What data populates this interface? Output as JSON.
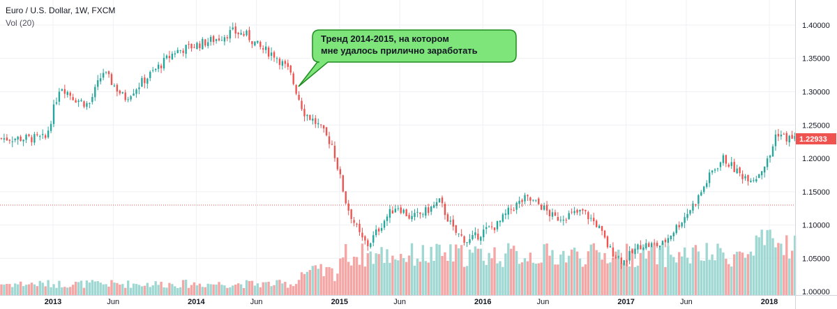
{
  "legend": {
    "title": "Euro / U.S. Dollar, 1W, FXCM",
    "volume": "Vol (20)"
  },
  "annotation": {
    "line1": "Тренд 2014-2015, на котором",
    "line2": "мне удалось прилично заработать",
    "color": "#7ee57a",
    "border_color": "#1e8c1e"
  },
  "chart_data": {
    "type": "candlestick",
    "symbol": "Euro / U.S. Dollar",
    "interval": "1W",
    "source": "FXCM",
    "x_ticks": [
      "2013",
      "Jun",
      "2014",
      "Jun",
      "2015",
      "Jun",
      "2016",
      "Jun",
      "2017",
      "Jun",
      "2018"
    ],
    "y_ticks": [
      "1.00000",
      "1.05000",
      "1.10000",
      "1.15000",
      "1.20000",
      "1.25000",
      "1.30000",
      "1.35000",
      "1.40000"
    ],
    "ylim": [
      0.995,
      1.425
    ],
    "last_price": 1.22933,
    "last_price_label": "1.22933",
    "reference_line": 1.13,
    "colors": {
      "up": "#26a69a",
      "down": "#ef5350",
      "vol_up": "#9fd8d2",
      "vol_down": "#f5a6a4",
      "price_tag": "#ef5350",
      "ref_line": "#ef5350"
    },
    "close_path": [
      [
        2012.95,
        1.23
      ],
      [
        2013.05,
        1.31
      ],
      [
        2013.15,
        1.29
      ],
      [
        2013.25,
        1.28
      ],
      [
        2013.35,
        1.33
      ],
      [
        2013.5,
        1.29
      ],
      [
        2013.6,
        1.31
      ],
      [
        2013.75,
        1.34
      ],
      [
        2013.85,
        1.36
      ],
      [
        2014.0,
        1.37
      ],
      [
        2014.15,
        1.38
      ],
      [
        2014.25,
        1.39
      ],
      [
        2014.35,
        1.385
      ],
      [
        2014.45,
        1.365
      ],
      [
        2014.55,
        1.355
      ],
      [
        2014.65,
        1.33
      ],
      [
        2014.75,
        1.27
      ],
      [
        2014.85,
        1.25
      ],
      [
        2014.95,
        1.22
      ],
      [
        2015.05,
        1.13
      ],
      [
        2015.15,
        1.08
      ],
      [
        2015.2,
        1.07
      ],
      [
        2015.32,
        1.11
      ],
      [
        2015.4,
        1.13
      ],
      [
        2015.5,
        1.11
      ],
      [
        2015.6,
        1.12
      ],
      [
        2015.7,
        1.135
      ],
      [
        2015.8,
        1.09
      ],
      [
        2015.9,
        1.075
      ],
      [
        2016.0,
        1.09
      ],
      [
        2016.1,
        1.1
      ],
      [
        2016.2,
        1.125
      ],
      [
        2016.3,
        1.14
      ],
      [
        2016.4,
        1.13
      ],
      [
        2016.5,
        1.11
      ],
      [
        2016.6,
        1.115
      ],
      [
        2016.7,
        1.12
      ],
      [
        2016.8,
        1.1
      ],
      [
        2016.88,
        1.065
      ],
      [
        2016.98,
        1.045
      ],
      [
        2017.1,
        1.07
      ],
      [
        2017.25,
        1.07
      ],
      [
        2017.4,
        1.11
      ],
      [
        2017.5,
        1.14
      ],
      [
        2017.6,
        1.18
      ],
      [
        2017.68,
        1.2
      ],
      [
        2017.8,
        1.175
      ],
      [
        2017.9,
        1.17
      ],
      [
        2018.0,
        1.2
      ],
      [
        2018.05,
        1.24
      ],
      [
        2018.12,
        1.23
      ]
    ],
    "volume": {
      "typical": "low in 2013–2014, higher from 2015 onward, highest in early 2018"
    }
  }
}
